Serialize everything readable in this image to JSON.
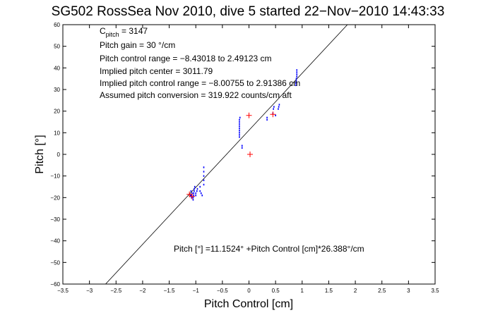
{
  "chart_data": {
    "type": "scatter",
    "title": "SG502 RossSea Nov 2010, dive 5 started 22−Nov−2010 14:43:33",
    "xlabel": "Pitch Control [cm]",
    "ylabel": "Pitch [°]",
    "xlim": [
      -3.5,
      3.5
    ],
    "ylim": [
      -60,
      60
    ],
    "xticks": [
      -3.5,
      -3,
      -2.5,
      -2,
      -1.5,
      -1,
      -0.5,
      0,
      0.5,
      1,
      1.5,
      2,
      2.5,
      3,
      3.5
    ],
    "xtick_labels": [
      "−3.5",
      "−3",
      "−2.5",
      "−2",
      "−1.5",
      "−1",
      "−0.5",
      "0",
      "0.5",
      "1",
      "1.5",
      "2",
      "2.5",
      "3",
      "3.5"
    ],
    "yticks": [
      -60,
      -50,
      -40,
      -30,
      -20,
      -10,
      0,
      10,
      20,
      30,
      40,
      50,
      60
    ],
    "ytick_labels": [
      "−60",
      "−50",
      "−40",
      "−30",
      "−20",
      "−10",
      "0",
      "10",
      "20",
      "30",
      "40",
      "50",
      "60"
    ],
    "grid": false,
    "annotations": {
      "c_pitch_main": "C",
      "c_pitch_sub": "pitch",
      "c_pitch_val": " = 3147",
      "lines": [
        "Pitch gain = 30 °/cm",
        "Pitch control range = −8.43018 to 2.49123 cm",
        "Implied pitch center = 3011.79",
        "Implied pitch control range = −8.00755 to 2.91386 cm",
        "Assumed pitch conversion = 319.922 counts/cm aft"
      ],
      "fit_text": "Pitch [°] =11.1524° +Pitch Control [cm]*26.388°/cm"
    },
    "fit_line": {
      "intercept": 11.1524,
      "slope": 26.388
    },
    "series": [
      {
        "color": "#0000ff",
        "marker": "dot",
        "points": [
          [
            -1.05,
            -21
          ],
          [
            -1.05,
            -20
          ],
          [
            -1.04,
            -19
          ],
          [
            -1.04,
            -18
          ],
          [
            -1.03,
            -17
          ],
          [
            -1.03,
            -16
          ],
          [
            -1.02,
            -15
          ],
          [
            -1.08,
            -20
          ],
          [
            -1.08,
            -19
          ],
          [
            -1.07,
            -18
          ],
          [
            -1.1,
            -19
          ],
          [
            -1.09,
            -17
          ],
          [
            -1.0,
            -19
          ],
          [
            -1.0,
            -18
          ],
          [
            -0.98,
            -17
          ],
          [
            -0.97,
            -16
          ],
          [
            -0.92,
            -15
          ],
          [
            -0.92,
            -17
          ],
          [
            -0.9,
            -18
          ],
          [
            -0.88,
            -19
          ],
          [
            -0.85,
            -14
          ],
          [
            -0.85,
            -12
          ],
          [
            -0.85,
            -10
          ],
          [
            -0.85,
            -8
          ],
          [
            -0.85,
            -6
          ],
          [
            -0.18,
            8
          ],
          [
            -0.18,
            9
          ],
          [
            -0.18,
            10
          ],
          [
            -0.18,
            11
          ],
          [
            -0.18,
            12
          ],
          [
            -0.18,
            13
          ],
          [
            -0.18,
            14
          ],
          [
            -0.18,
            15
          ],
          [
            -0.18,
            16
          ],
          [
            -0.17,
            17
          ],
          [
            -0.13,
            3
          ],
          [
            -0.13,
            4
          ],
          [
            0.34,
            16
          ],
          [
            0.34,
            17
          ],
          [
            0.45,
            19
          ],
          [
            0.46,
            21
          ],
          [
            0.47,
            22
          ],
          [
            0.5,
            18
          ],
          [
            0.55,
            21
          ],
          [
            0.56,
            22
          ],
          [
            0.57,
            23
          ],
          [
            0.88,
            32
          ],
          [
            0.88,
            33
          ],
          [
            0.89,
            34
          ],
          [
            0.89,
            35
          ],
          [
            0.9,
            36
          ],
          [
            0.9,
            37
          ],
          [
            0.9,
            38
          ],
          [
            0.9,
            39
          ]
        ]
      },
      {
        "color": "#ff0000",
        "marker": "plus",
        "points": [
          [
            -1.12,
            -18.5
          ],
          [
            -1.07,
            -19.5
          ],
          [
            0.02,
            0
          ],
          [
            0.45,
            18.5
          ],
          [
            0.0,
            18
          ]
        ]
      }
    ]
  }
}
